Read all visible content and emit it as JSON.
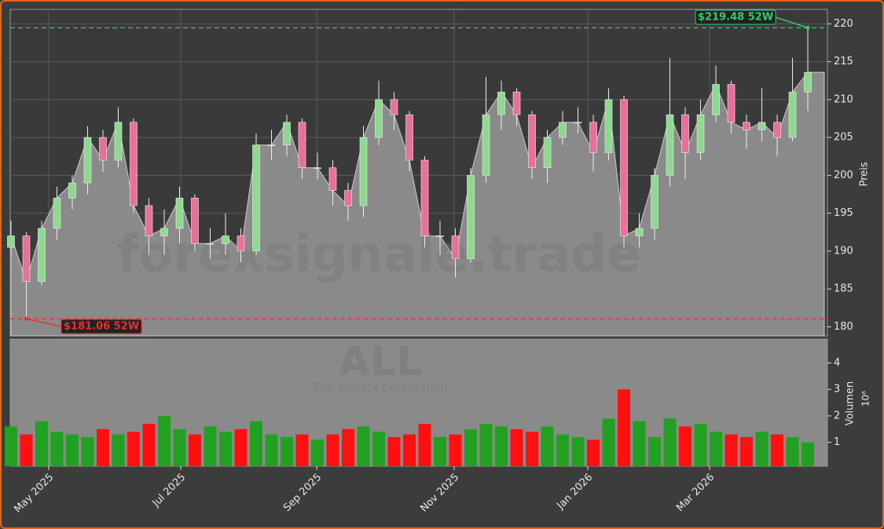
{
  "chart_data": {
    "type": "candlestick",
    "watermark": "forexsignale.trade",
    "symbol": "ALL",
    "company": "The Allstate Corporation",
    "ylabel": "Preis",
    "ylim": [
      178.8,
      221.9
    ],
    "yticks": [
      180,
      185,
      190,
      195,
      200,
      205,
      210,
      215,
      220
    ],
    "xlim": [
      -0.05,
      53.28
    ],
    "xticks": [
      {
        "value": 2.46,
        "label": "May 2025"
      },
      {
        "value": 11.08,
        "label": "Jul 2025"
      },
      {
        "value": 19.95,
        "label": "Sep 2025"
      },
      {
        "value": 28.92,
        "label": "Nov 2025"
      },
      {
        "value": 37.64,
        "label": "Jan 2026"
      },
      {
        "value": 45.59,
        "label": "Mar 2026"
      }
    ],
    "grid": true,
    "up_color": "#8fd88f",
    "down_color": "#e8709a",
    "area_color": "#8a8a8a",
    "open": [
      190.5,
      192,
      186,
      193,
      197,
      199,
      205,
      202,
      207,
      196,
      192,
      193,
      197,
      191,
      191,
      192,
      190,
      204,
      204,
      207,
      201,
      201,
      198,
      196,
      205,
      210,
      208,
      202,
      192,
      192,
      189,
      200,
      208,
      211,
      208,
      201,
      205,
      207,
      207,
      203,
      210,
      192,
      193,
      200,
      208,
      203,
      208,
      212,
      207,
      206,
      207,
      205,
      211
    ],
    "high": [
      194,
      192.5,
      194,
      198.5,
      200,
      206.5,
      206,
      209,
      207.5,
      197,
      195.5,
      198.5,
      197.5,
      193,
      195,
      193,
      205.5,
      206,
      208,
      207.5,
      203,
      202,
      199,
      206.5,
      212.5,
      211,
      208.5,
      202.5,
      194,
      193,
      201,
      213,
      212.5,
      211.5,
      208.5,
      206,
      208.5,
      209,
      208,
      211.5,
      210.5,
      195,
      201,
      215.5,
      209,
      210,
      214.5,
      212.5,
      208,
      211.5,
      208,
      215.5,
      219.48
    ],
    "low": [
      189.5,
      181.06,
      185.5,
      191.5,
      195.5,
      197.5,
      200.5,
      201,
      195,
      189.5,
      189.5,
      191,
      190,
      189,
      189.5,
      188.5,
      189.5,
      202,
      202.5,
      199.5,
      199.5,
      196,
      194,
      194.5,
      204,
      206,
      200.5,
      190.5,
      189.5,
      186.5,
      188.5,
      199,
      206,
      206.5,
      199.5,
      199,
      204,
      205.5,
      200.5,
      202,
      190.5,
      190.5,
      191.5,
      198.5,
      199.5,
      202,
      207,
      205.5,
      203.5,
      204.5,
      202.5,
      204.5,
      208.5
    ],
    "close": [
      192,
      186,
      193,
      197,
      199,
      205,
      202,
      207,
      196,
      192,
      193,
      197,
      191,
      191,
      192,
      190,
      204,
      204,
      207,
      201,
      201,
      198,
      196,
      205,
      210,
      208,
      202,
      192,
      192,
      189,
      200,
      208,
      211,
      208,
      201,
      205,
      207,
      207,
      203,
      210,
      192,
      193,
      200,
      208,
      203,
      208,
      212,
      207,
      206,
      207,
      205,
      211,
      213.6
    ],
    "high_52w": {
      "value": 219.48,
      "label": "$219.48 52W",
      "color": "#2ecc71"
    },
    "low_52w": {
      "value": 181.06,
      "label": "$181.06 52W",
      "color": "#e83030"
    },
    "volume": {
      "ylabel": "Volumen",
      "multiplier": "10⁶",
      "ylim": [
        0.1,
        4.9
      ],
      "yticks": [
        1,
        2,
        3,
        4
      ],
      "up_color": "#22a022",
      "down_color": "#ff1010",
      "values": [
        1.6,
        1.3,
        1.8,
        1.4,
        1.3,
        1.2,
        1.5,
        1.3,
        1.4,
        1.7,
        2.0,
        1.5,
        1.3,
        1.6,
        1.4,
        1.5,
        1.8,
        1.3,
        1.2,
        1.3,
        1.1,
        1.3,
        1.5,
        1.6,
        1.4,
        1.2,
        1.3,
        1.7,
        1.2,
        1.3,
        1.5,
        1.7,
        1.6,
        1.5,
        1.4,
        1.6,
        1.3,
        1.2,
        1.1,
        1.9,
        3.0,
        1.8,
        1.2,
        1.9,
        1.6,
        1.7,
        1.4,
        1.3,
        1.2,
        1.4,
        1.3,
        1.2,
        1.0
      ]
    }
  }
}
